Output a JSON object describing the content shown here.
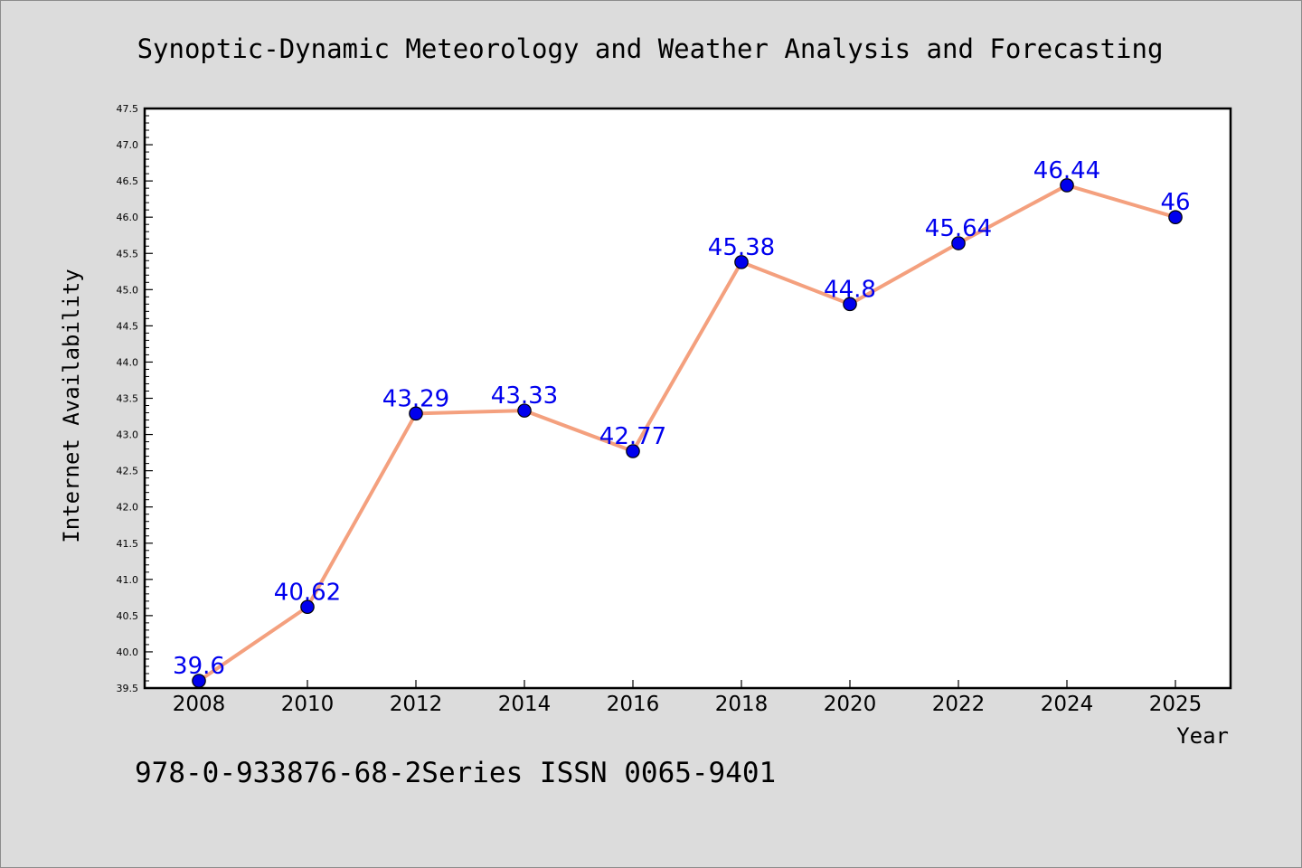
{
  "chart_data": {
    "type": "line",
    "title": "Synoptic-Dynamic Meteorology and Weather Analysis and Forecasting",
    "xlabel": "Year",
    "ylabel": "Internet Availability",
    "footer": "978-0-933876-68-2Series ISSN 0065-9401",
    "categories": [
      "2008",
      "2010",
      "2012",
      "2014",
      "2016",
      "2018",
      "2020",
      "2022",
      "2024",
      "2025"
    ],
    "series": [
      {
        "values": [
          39.6,
          40.62,
          43.29,
          43.33,
          42.77,
          45.38,
          44.8,
          45.64,
          46.44,
          46
        ],
        "data_labels": [
          "39.6",
          "40.62",
          "43.29",
          "43.33",
          "42.77",
          "45.38",
          "44.8",
          "45.64",
          "46.44",
          "46"
        ],
        "line_color": "#f4a07e",
        "marker_color": "#0000ee",
        "label_color": "#0000ee"
      }
    ],
    "ylim": [
      39.5,
      47.5
    ],
    "yticks": [
      "39.5",
      "40.0",
      "40.5",
      "41.0",
      "41.5",
      "42.0",
      "42.5",
      "43.0",
      "43.5",
      "44.0",
      "44.5",
      "45.0",
      "45.5",
      "46.0",
      "46.5",
      "47.0",
      "47.5"
    ],
    "grid": false,
    "legend": "none",
    "colors": {
      "background": "#dcdcdc",
      "plot_background": "#ffffff",
      "axis": "#000000"
    }
  }
}
